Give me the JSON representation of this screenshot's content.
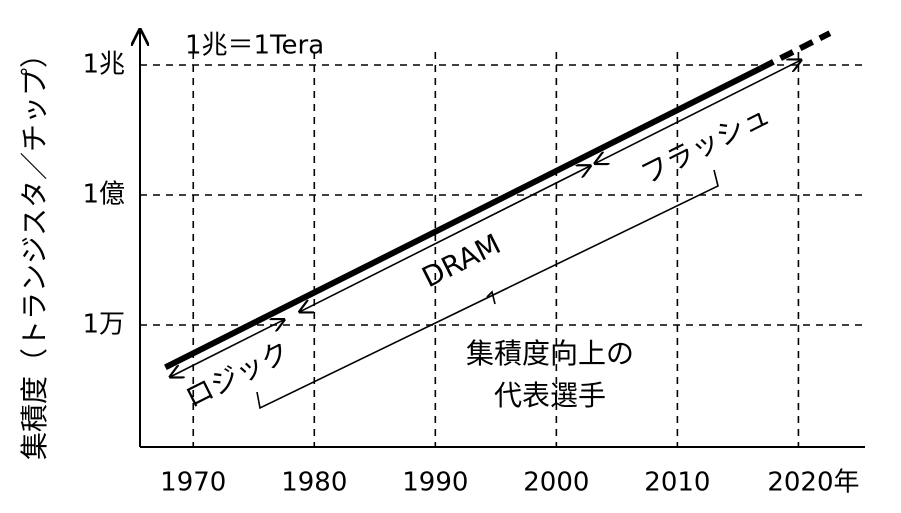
{
  "chart_data": {
    "type": "line",
    "y_label": "集積度（トランジスタ／チップ）",
    "note": "1兆＝1Tera",
    "log_y": true,
    "grid": true,
    "xlim": [
      1965.6,
      2025.5
    ],
    "ylim": [
      1,
      10000000000000
    ],
    "xticks": [
      1970,
      1980,
      1990,
      2000,
      2010,
      {
        "value": 2020,
        "label": "2020年"
      }
    ],
    "yticks": [
      {
        "value": 10000,
        "label": "1万"
      },
      {
        "value": 100000000,
        "label": "1億"
      },
      {
        "value": 1000000000000,
        "label": "1兆"
      }
    ],
    "series": [
      {
        "color": "#000000",
        "dashed": false,
        "x": [
          1967.7,
          2016.9
        ],
        "values": [
          500,
          800000000000
        ]
      },
      {
        "color": "#000000",
        "dashed": true,
        "x": [
          2016.9,
          2022.6
        ],
        "values": [
          800000000000,
          9500000000000
        ]
      }
    ],
    "ranges": [
      {
        "label": "ロジック",
        "x": [
          1968.1,
          1977.5
        ]
      },
      {
        "label": "DRAM",
        "x": [
          1978.8,
          2002.8
        ]
      },
      {
        "label": "フラッシュ",
        "x": [
          2003.2,
          2020.2
        ]
      }
    ],
    "annotation_lines": [
      "集積度向上の",
      "代表選手"
    ]
  }
}
